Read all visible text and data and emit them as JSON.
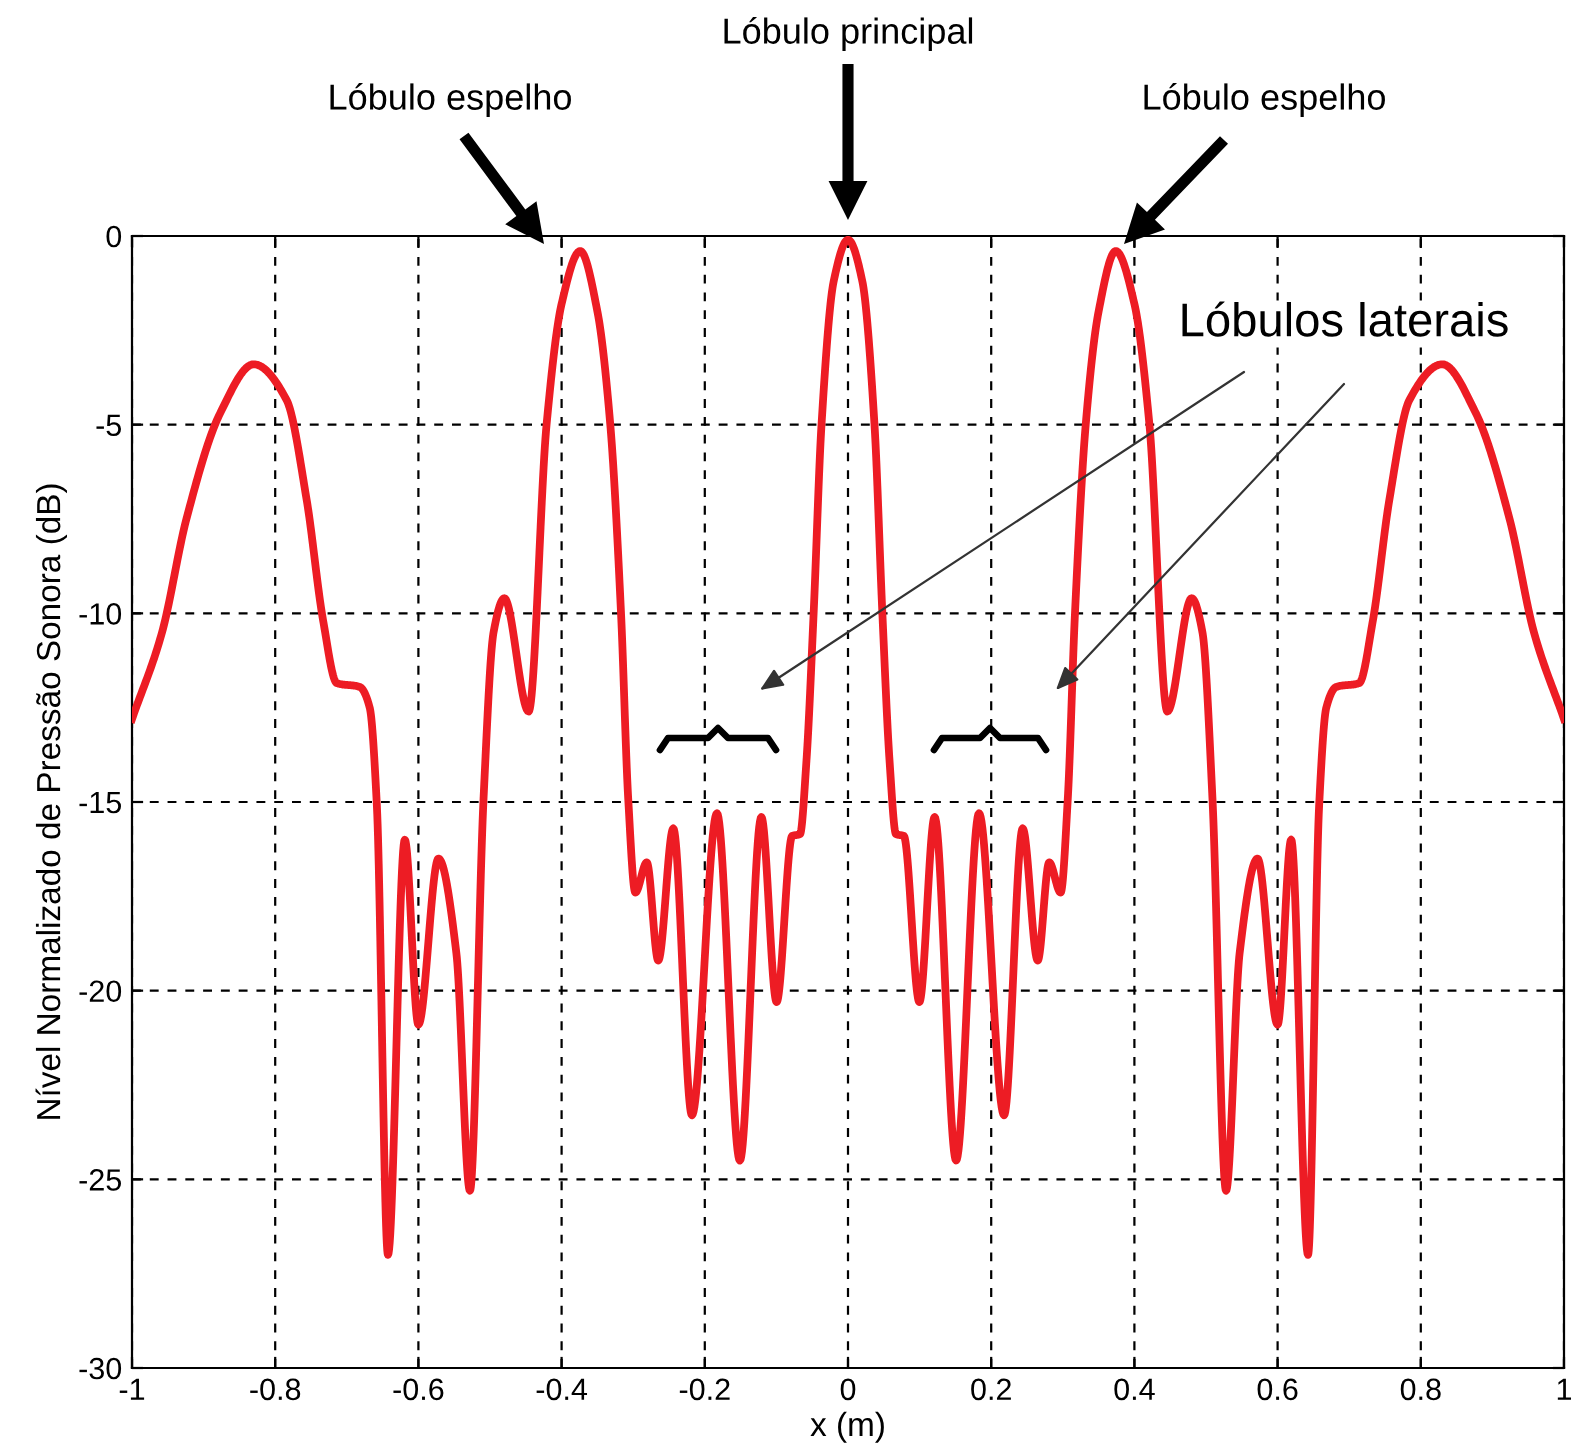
{
  "chart_data": {
    "type": "line",
    "xlabel": "x (m)",
    "ylabel": "Nível Normalizado de Pressão Sonora (dB)",
    "xlim": [
      -1,
      1
    ],
    "xticks": [
      -1,
      -0.8,
      -0.6,
      -0.4,
      -0.2,
      0,
      0.2,
      0.4,
      0.6,
      0.8,
      1
    ],
    "ylim": [
      -30,
      0
    ],
    "yticks": [
      -30,
      -25,
      -20,
      -15,
      -10,
      -5,
      0
    ],
    "grid": true,
    "line_style": "solid",
    "series": [
      {
        "color": "#ed1c24",
        "x": [
          -1,
          -0.958,
          -0.924,
          -0.877,
          -0.83,
          -0.784,
          -0.756,
          -0.733,
          -0.714,
          -0.682,
          -0.668,
          -0.658,
          -0.6425,
          -0.619,
          -0.6,
          -0.572,
          -0.547,
          -0.528,
          -0.509,
          -0.495,
          -0.48,
          -0.446,
          -0.421,
          -0.4,
          -0.374,
          -0.35,
          -0.332,
          -0.317,
          -0.307,
          -0.297,
          -0.281,
          -0.265,
          -0.244,
          -0.218,
          -0.183,
          -0.151,
          -0.121,
          -0.0997,
          -0.078,
          -0.067,
          -0.058,
          -0.048,
          -0.037,
          -0.02,
          0,
          0.02,
          0.037,
          0.048,
          0.058,
          0.067,
          0.078,
          0.0997,
          0.121,
          0.151,
          0.183,
          0.218,
          0.244,
          0.265,
          0.281,
          0.297,
          0.307,
          0.317,
          0.332,
          0.35,
          0.374,
          0.4,
          0.421,
          0.446,
          0.48,
          0.495,
          0.509,
          0.528,
          0.547,
          0.572,
          0.6,
          0.619,
          0.6425,
          0.658,
          0.668,
          0.682,
          0.714,
          0.733,
          0.756,
          0.784,
          0.83,
          0.877,
          0.924,
          0.958,
          1
        ],
        "values": [
          -12.8,
          -10.5,
          -7.5,
          -4.7,
          -3.4,
          -4.35,
          -7.0,
          -10.2,
          -11.85,
          -11.95,
          -12.5,
          -15.1,
          -27.0,
          -16.0,
          -20.9,
          -16.5,
          -19.0,
          -25.3,
          -14.9,
          -10.5,
          -9.6,
          -12.6,
          -5.0,
          -1.8,
          -0.4,
          -2.0,
          -5.0,
          -10.0,
          -14.9,
          -17.4,
          -16.6,
          -19.2,
          -15.7,
          -23.3,
          -15.3,
          -24.5,
          -15.4,
          -20.3,
          -15.9,
          -15.85,
          -13.9,
          -10.0,
          -5.0,
          -1.2,
          -0.1,
          -1.2,
          -5.0,
          -10.0,
          -13.9,
          -15.85,
          -15.9,
          -20.3,
          -15.4,
          -24.5,
          -15.3,
          -23.3,
          -15.7,
          -19.2,
          -16.6,
          -17.4,
          -14.9,
          -10.0,
          -5.0,
          -2.0,
          -0.4,
          -1.8,
          -5.0,
          -12.6,
          -9.6,
          -10.5,
          -14.9,
          -25.3,
          -19.0,
          -16.5,
          -20.9,
          -16.0,
          -27.0,
          -15.1,
          -12.5,
          -11.95,
          -11.85,
          -10.2,
          -7.0,
          -4.35,
          -3.4,
          -4.7,
          -7.5,
          -10.5,
          -12.8
        ]
      }
    ],
    "annotations": [
      "Lóbulo principal",
      "Lóbulo espelho",
      "Lóbulo espelho",
      "Lóbulos laterais"
    ]
  }
}
